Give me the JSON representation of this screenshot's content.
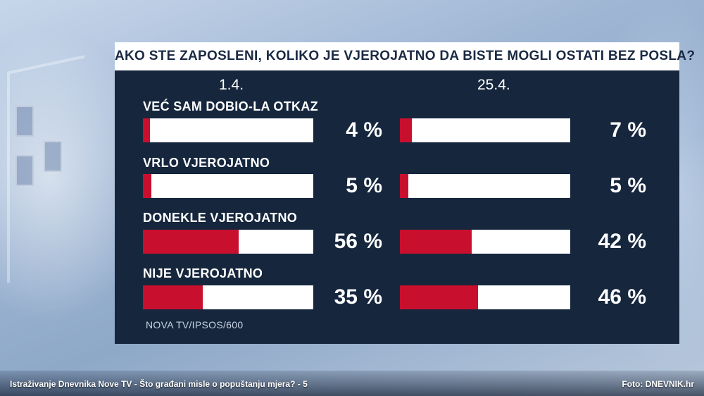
{
  "caption": {
    "left": "Istraživanje Dnevnika Nove TV - Što građani misle o popuštanju mjera? - 5",
    "right": "Foto: DNEVNIK.hr"
  },
  "chart_data": {
    "type": "bar",
    "title": "AKO STE ZAPOSLENI, KOLIKO JE VJEROJATNO DA BISTE MOGLI OSTATI BEZ POSLA?",
    "categories": [
      "VEĆ SAM DOBIO-LA OTKAZ",
      "VRLO VJEROJATNO",
      "DONEKLE VJEROJATNO",
      "NIJE VJEROJATNO"
    ],
    "series": [
      {
        "name": "1.4.",
        "values": [
          4,
          5,
          56,
          35
        ],
        "labels": [
          "4 %",
          "5 %",
          "56 %",
          "35 %"
        ]
      },
      {
        "name": "25.4.",
        "values": [
          7,
          5,
          42,
          46
        ],
        "labels": [
          "7 %",
          "5 %",
          "42 %",
          "46 %"
        ]
      }
    ],
    "ylim": [
      0,
      100
    ],
    "source": "NOVA TV/IPSOS/600",
    "colors": {
      "fill": "#c8102e",
      "track": "#ffffff",
      "panel": "#15263d"
    }
  }
}
